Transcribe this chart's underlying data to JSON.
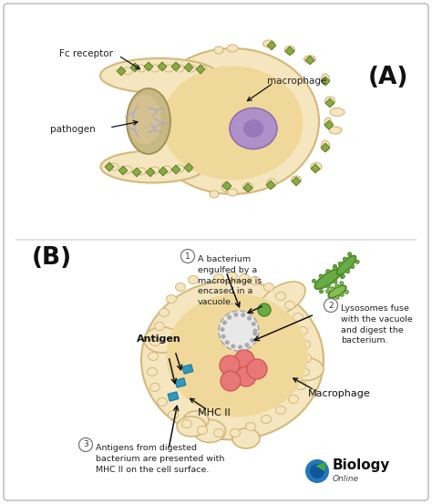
{
  "bg_color": "#ffffff",
  "border_color": "#cccccc",
  "panel_A_label": "(A)",
  "panel_B_label": "(B)",
  "label_fc_receptor": "Fc receptor",
  "label_pathogen": "pathogen",
  "label_macrophage_A": "macrophage",
  "label_antigen": "Antigen",
  "label_mhc2": "MHC II",
  "label_macrophage_B": "Macrophage",
  "text_step1": "A bacterium\nengulfed by a\nmacrophage is\nencased in a\nvacuole.",
  "text_step2": "Lysosomes fuse\nwith the vacuole\nand digest the\nbacterium.",
  "text_step3": "Antigens from digested\nbacterium are presented with\nMHC II on the cell surface.",
  "biology_text1": "Biology",
  "biology_text2": "Online",
  "cell_outer": "#f5e6c0",
  "cell_inner": "#f0d89a",
  "cell_edge": "#d4b87a",
  "nucleus_fill": "#b090c8",
  "nucleus_edge": "#9070b0",
  "nucleolus_fill": "#9878b8",
  "pathogen_fill": "#c8b882",
  "pathogen_edge": "#a09050",
  "receptor_fill": "#8aaa44",
  "receptor_edge": "#557722",
  "lysosome_fill": "#e87878",
  "lysosome_edge": "#cc5555",
  "vacuole_fill": "#e8e8e8",
  "vacuole_edge": "#aaaaaa",
  "mhc_fill": "#3399bb",
  "mhc_edge": "#1177aa",
  "bact_fill": "#6aaa44",
  "bact_edge": "#448822",
  "arrow_color": "#111111",
  "antibody_color": "#aaaacc"
}
